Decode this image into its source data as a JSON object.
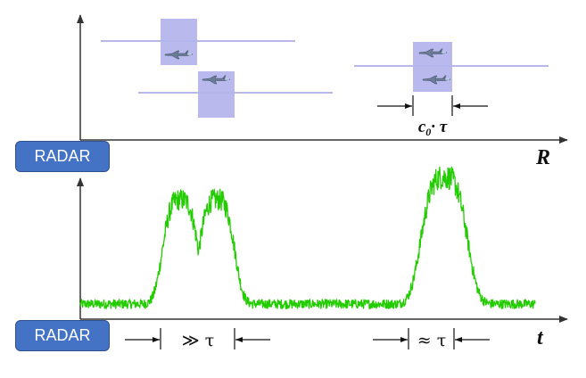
{
  "top_panel": {
    "radar_label": "RADAR",
    "axis_label": "R",
    "resolution_label_main": "c",
    "resolution_label_sub": "0",
    "resolution_label_rest": "· τ"
  },
  "bottom_panel": {
    "radar_label": "RADAR",
    "axis_label": "t",
    "separation_label_left": "≫ τ",
    "separation_label_right": "≈ τ"
  },
  "colors": {
    "axis": "#333333",
    "echo_line": "#8f8fdc",
    "pulse_box": "#b3b3ec",
    "signal": "#22cc00",
    "badge": "#4472c4",
    "aircraft": "#6b7d96"
  },
  "signal_model": {
    "noise_floor": 0.06,
    "noise_amplitude": 0.035,
    "peak_noise_amplitude": 0.06,
    "peaks": [
      {
        "position": 0.22,
        "height": 0.78
      },
      {
        "position": 0.3,
        "height": 0.78
      },
      {
        "position": 0.8,
        "height": 0.95
      }
    ]
  }
}
